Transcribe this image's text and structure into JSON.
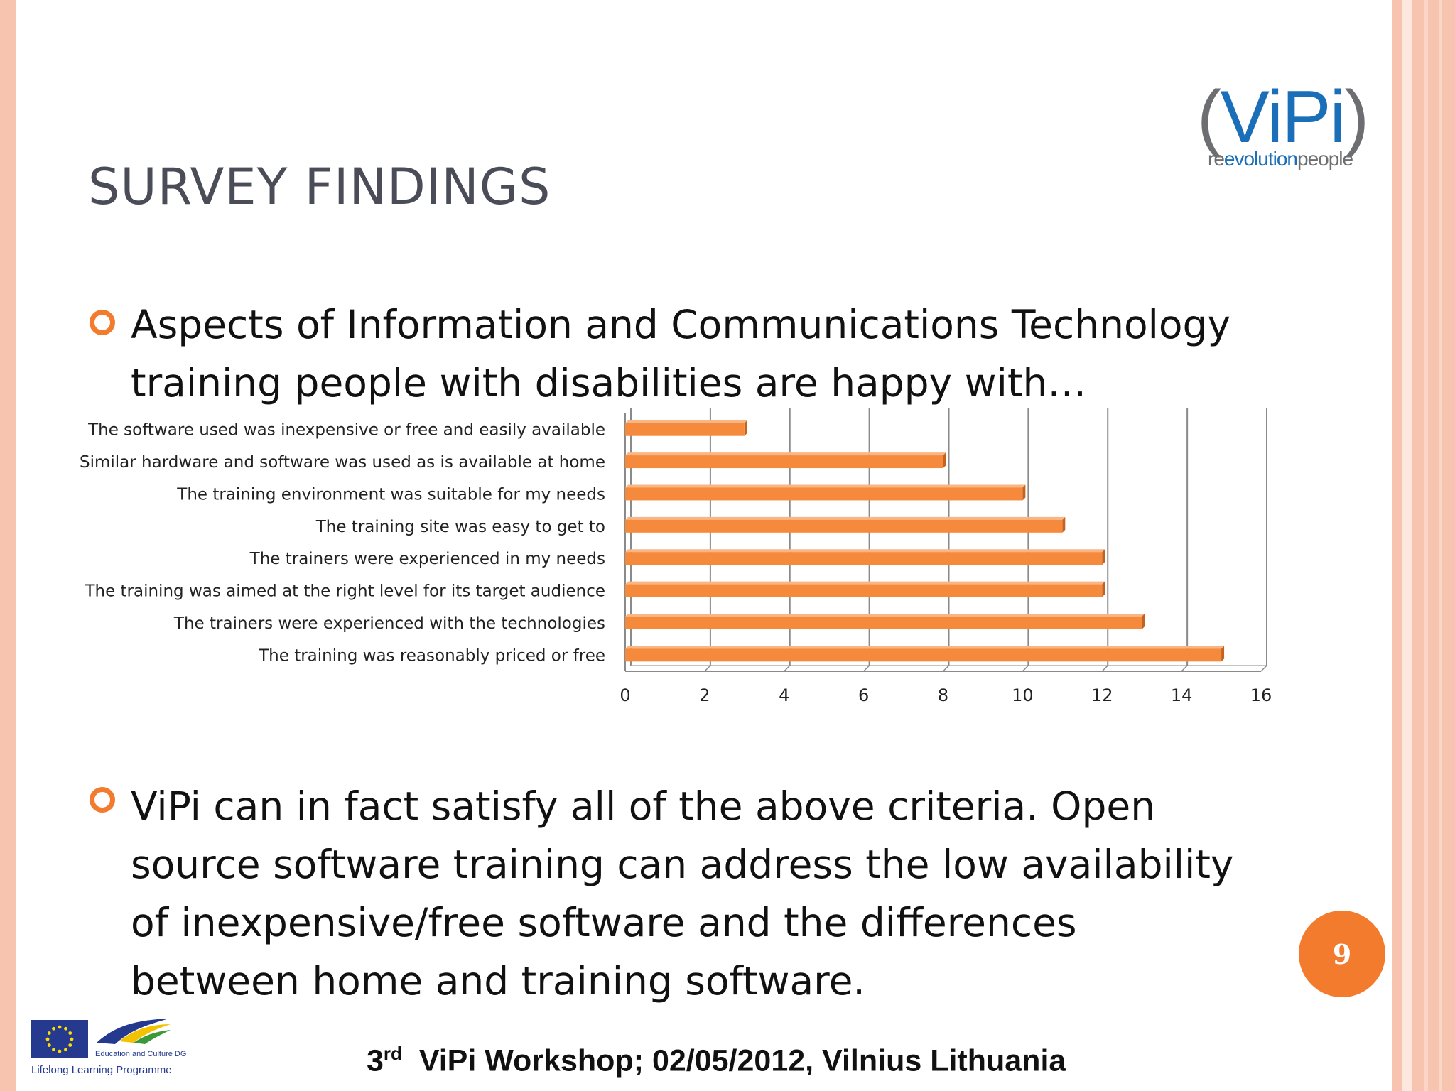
{
  "slide": {
    "title": "SURVEY FINDINGS",
    "bullets": [
      "Aspects of Information and Communications Technology training people with disabilities are happy with…",
      "ViPi can in fact satisfy all of the above criteria. Open source software training can address the low availability of inexpensive/free software and the differences between home and training software."
    ],
    "page_number": "9"
  },
  "logo": {
    "word_left_paren": "(",
    "word_v": "V",
    "word_i1": "i",
    "word_p": "P",
    "word_i2": "i",
    "word_right_paren": ")",
    "tagline_part1": "re",
    "tagline_part2": "evolution",
    "tagline_part3": "people"
  },
  "footer": {
    "prefix": "3",
    "ordinal": "rd",
    "text": "ViPi Workshop; 02/05/2012, Vilnius Lithuania"
  },
  "partner_logo": {
    "dg": "Education and Culture DG",
    "programme": "Lifelong Learning Programme"
  },
  "colors": {
    "bar": "#f58a3c",
    "bar_top": "#f9b684",
    "bar_side": "#c4621f",
    "accent": "#f37b2d",
    "title": "#4a4d57"
  },
  "chart_data": {
    "type": "bar",
    "orientation": "horizontal",
    "categories": [
      "The software used was inexpensive or free and easily available",
      "Similar hardware and software was used as is available at home",
      "The training environment was suitable for my needs",
      "The training site was easy to get to",
      "The trainers were experienced in my needs",
      "The training was aimed at the right level for its target audience",
      "The trainers were experienced with the technologies",
      "The training was reasonably priced or free"
    ],
    "values": [
      3,
      8,
      10,
      11,
      12,
      12,
      13,
      15
    ],
    "xlim": [
      0,
      16
    ],
    "xticks": [
      "0",
      "2",
      "4",
      "6",
      "8",
      "10",
      "12",
      "14",
      "16"
    ],
    "grid": true,
    "legend": "none"
  }
}
